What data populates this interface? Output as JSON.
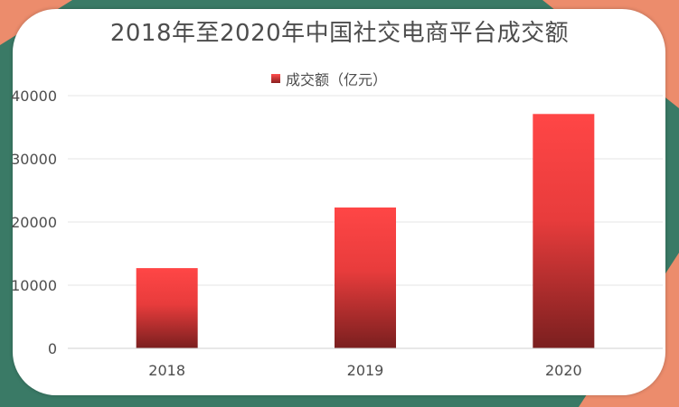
{
  "colors": {
    "background_teal": "#3a7a66",
    "corner_orange": "#ec8c6c",
    "bar_top": "#ff4646",
    "bar_bottom": "#7a1f1f",
    "text": "#4d4d4d",
    "grid": "#e6e6e6"
  },
  "chart_data": {
    "type": "bar",
    "title": "2018年至2020年中国社交电商平台成交额",
    "categories": [
      "2018",
      "2019",
      "2020"
    ],
    "series": [
      {
        "name": "成交额（亿元）",
        "values": [
          12700,
          22300,
          37100
        ]
      }
    ],
    "ylim": [
      0,
      40000
    ],
    "yticks": [
      "0",
      "10000",
      "20000",
      "30000",
      "40000"
    ],
    "grid": true,
    "legend_position": "top"
  }
}
